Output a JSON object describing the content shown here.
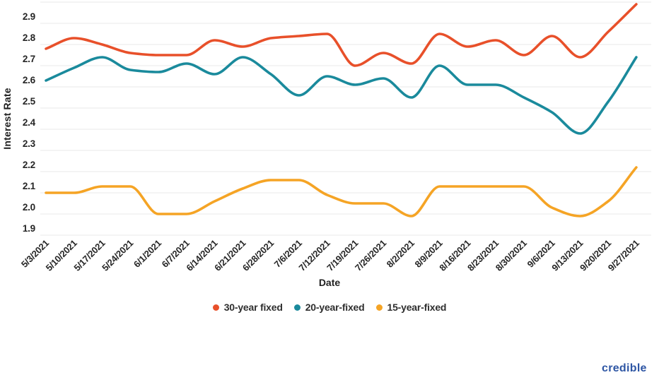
{
  "axis": {
    "y_title": "Interest Rate",
    "x_title": "Date"
  },
  "watermark": {
    "text": "credible",
    "color": "#2E56A4"
  },
  "colors": {
    "gridline": "#e8e8e8",
    "tick_text": "#262626"
  },
  "chart_data": {
    "type": "line",
    "title": "",
    "xlabel": "Date",
    "ylabel": "Interest Rate",
    "ylim": [
      1.9,
      3.0
    ],
    "grid": "horizontal-only",
    "legend_position": "bottom",
    "y_ticks": [
      "2.9",
      "2.8",
      "2.7",
      "2.6",
      "2.5",
      "2.4",
      "2.3",
      "2.2",
      "2.1",
      "2.0",
      "1.9"
    ],
    "x": [
      "5/3/2021",
      "5/10/2021",
      "5/17/2021",
      "5/24/2021",
      "6/1/2021",
      "6/7/2021",
      "6/14/2021",
      "6/21/2021",
      "6/28/2021",
      "7/6/2021",
      "7/12/2021",
      "7/19/2021",
      "7/26/2021",
      "8/2/2021",
      "8/9/2021",
      "8/16/2021",
      "8/23/2021",
      "8/30/2021",
      "9/6/2021",
      "9/13/2021",
      "9/20/2021",
      "9/27/2021"
    ],
    "series": [
      {
        "name": "30-year fixed",
        "color": "#E8502A",
        "values": [
          2.78,
          2.83,
          2.8,
          2.76,
          2.75,
          2.75,
          2.82,
          2.79,
          2.83,
          2.84,
          2.85,
          2.7,
          2.76,
          2.71,
          2.85,
          2.79,
          2.82,
          2.75,
          2.84,
          2.74,
          2.86,
          2.99
        ]
      },
      {
        "name": "20-year-fixed",
        "color": "#1A8A9C",
        "values": [
          2.63,
          2.69,
          2.74,
          2.68,
          2.67,
          2.71,
          2.66,
          2.74,
          2.66,
          2.56,
          2.65,
          2.61,
          2.64,
          2.55,
          2.7,
          2.61,
          2.61,
          2.55,
          2.48,
          2.38,
          2.53,
          2.74
        ]
      },
      {
        "name": "15-year-fixed",
        "color": "#F5A425",
        "values": [
          2.1,
          2.1,
          2.13,
          2.13,
          2.0,
          2.0,
          2.06,
          2.12,
          2.16,
          2.16,
          2.09,
          2.05,
          2.05,
          1.99,
          2.13,
          2.13,
          2.13,
          2.13,
          2.03,
          1.99,
          2.06,
          2.22
        ]
      }
    ]
  }
}
